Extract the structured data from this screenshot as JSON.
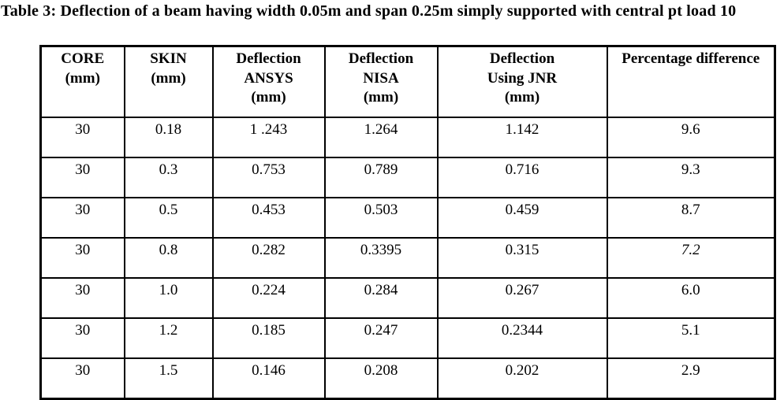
{
  "title": "Table 3: Deflection of a beam having width 0.05m and span 0.25m simply supported with central pt load 10",
  "colors": {
    "text": "#000000",
    "border": "#000000",
    "background": "#ffffff"
  },
  "table": {
    "headers": [
      {
        "lines": [
          "CORE",
          "(mm)"
        ]
      },
      {
        "lines": [
          "SKIN",
          "(mm)"
        ]
      },
      {
        "lines": [
          "Deflection",
          "ANSYS",
          "(mm)"
        ]
      },
      {
        "lines": [
          "Deflection",
          "NISA",
          "(mm)"
        ]
      },
      {
        "lines": [
          "Deflection",
          "Using JNR",
          "(mm)"
        ]
      },
      {
        "lines": [
          "Percentage difference"
        ]
      }
    ],
    "rows": [
      [
        "30",
        "0.18",
        "1 .243",
        "1.264",
        "1.142",
        "9.6"
      ],
      [
        "30",
        "0.3",
        "0.753",
        "0.789",
        "0.716",
        "9.3"
      ],
      [
        "30",
        "0.5",
        "0.453",
        "0.503",
        "0.459",
        "8.7"
      ],
      [
        "30",
        "0.8",
        "0.282",
        "0.3395",
        "0.315",
        "7.2"
      ],
      [
        "30",
        "1.0",
        "0.224",
        "0.284",
        "0.267",
        "6.0"
      ],
      [
        "30",
        "1.2",
        "0.185",
        "0.247",
        "0.2344",
        "5.1"
      ],
      [
        "30",
        "1.5",
        "0.146",
        "0.208",
        "0.202",
        "2.9"
      ]
    ]
  }
}
